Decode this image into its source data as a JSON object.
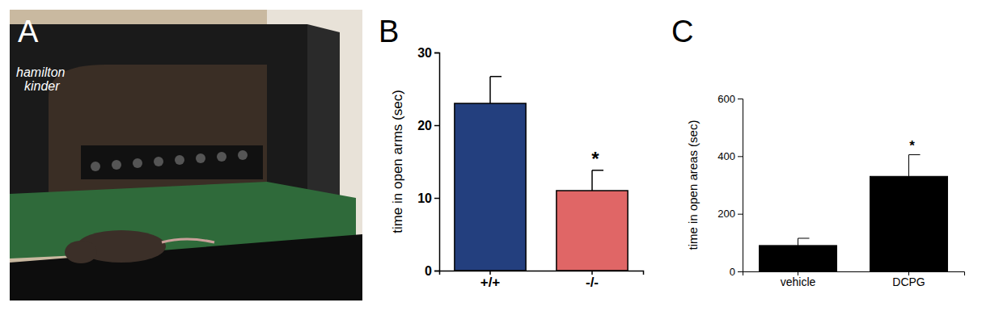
{
  "panel_labels": [
    "A",
    "B",
    "C"
  ],
  "photo": {
    "logo_lines": [
      "hamilton",
      "kinder"
    ]
  },
  "chart_data": [
    {
      "type": "bar",
      "categories": [
        "+/+",
        "-/-"
      ],
      "values": [
        23,
        11
      ],
      "errors": [
        3.7,
        2.8
      ],
      "colors": [
        "#233f7e",
        "#e06666"
      ],
      "ylabel": "time in open arms (sec)",
      "ylim": [
        0,
        30
      ],
      "yticks": [
        0,
        10,
        20,
        30
      ],
      "annotations": [
        null,
        "*"
      ]
    },
    {
      "type": "bar",
      "categories": [
        "vehicle",
        "DCPG"
      ],
      "values": [
        90,
        330
      ],
      "errors": [
        25,
        75
      ],
      "color": "#000000",
      "ylabel": "time in open areas (sec)",
      "ylim": [
        0,
        600
      ],
      "yticks": [
        0,
        200,
        400,
        600
      ],
      "annotations": [
        null,
        "*"
      ]
    }
  ]
}
